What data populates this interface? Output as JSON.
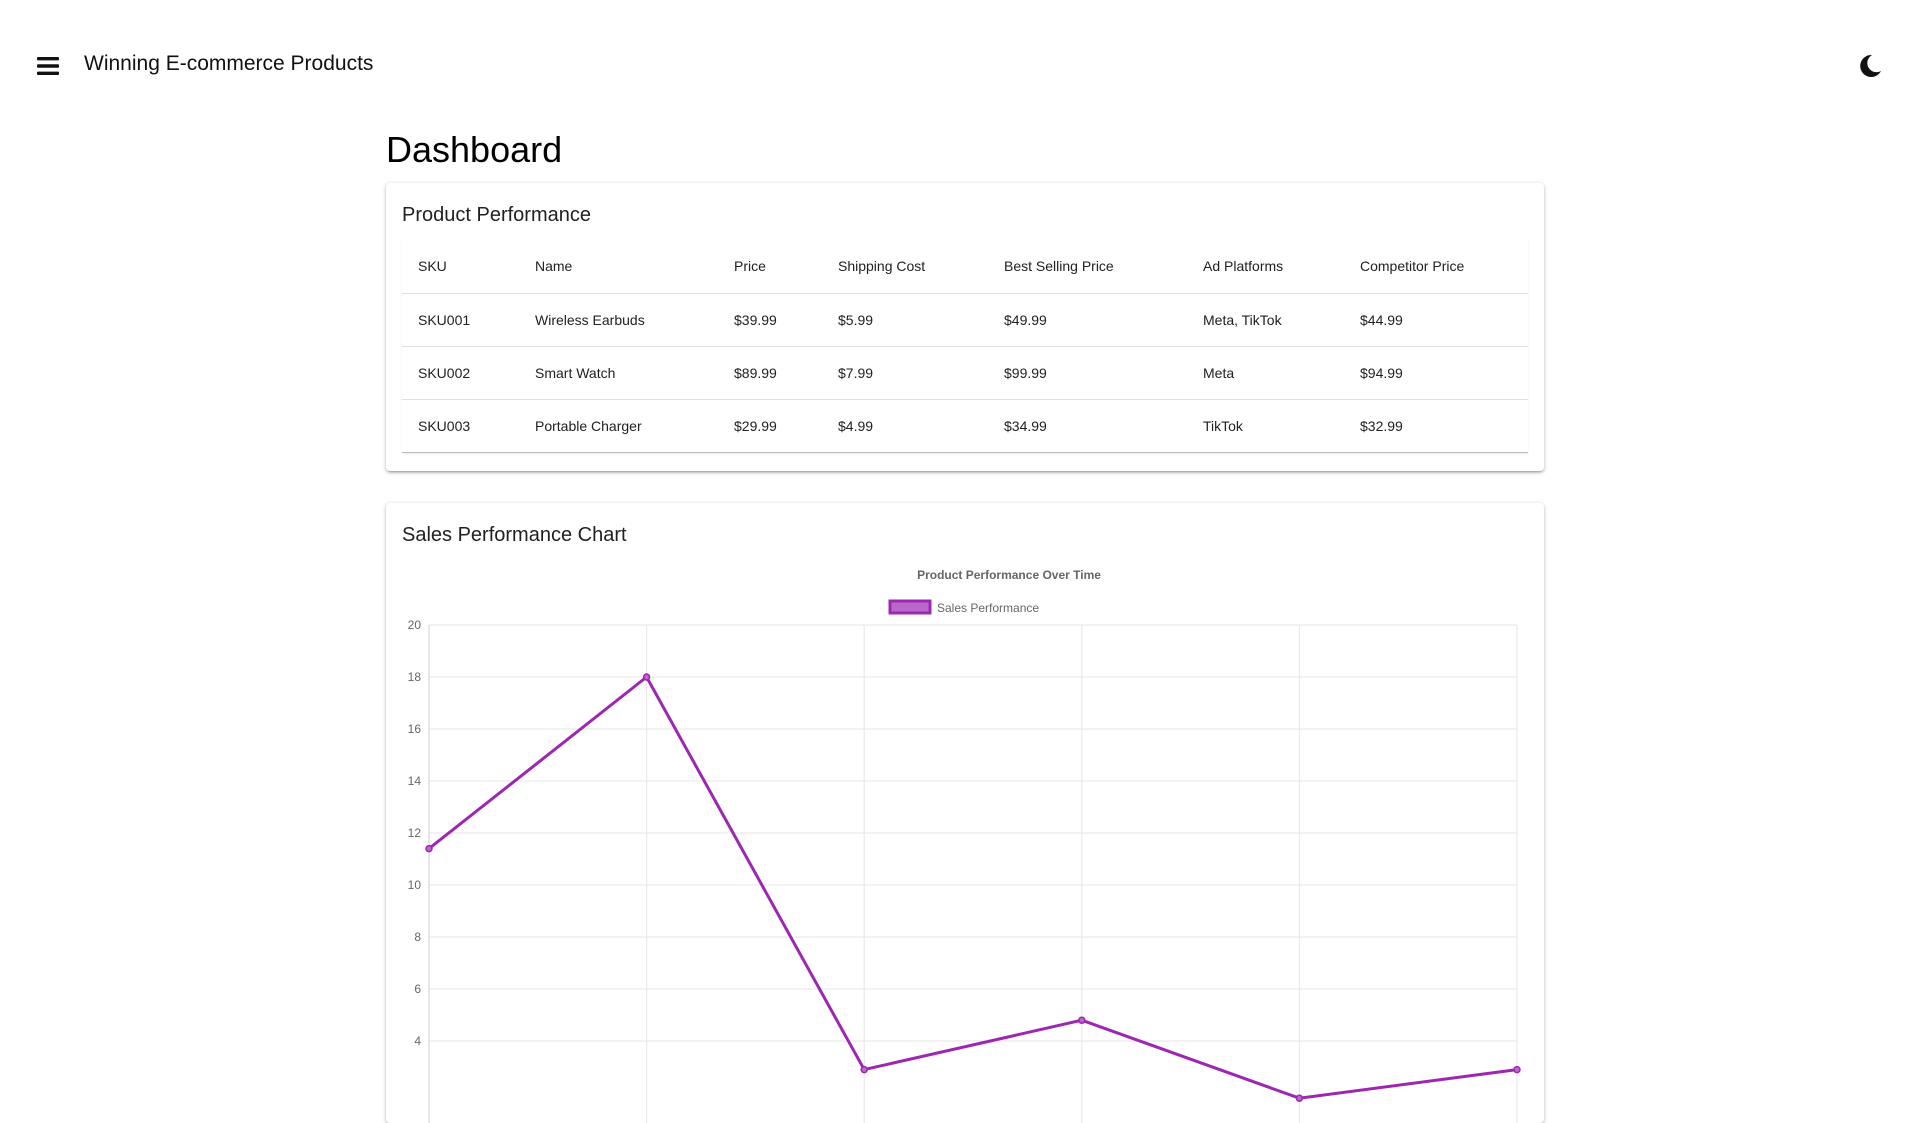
{
  "appbar": {
    "title": "Winning E-commerce Products",
    "menu_icon": "menu-icon",
    "theme_icon": "moon-icon"
  },
  "page": {
    "title": "Dashboard"
  },
  "performance_card": {
    "title": "Product Performance",
    "columns": [
      "SKU",
      "Name",
      "Price",
      "Shipping Cost",
      "Best Selling Price",
      "Ad Platforms",
      "Competitor Price"
    ],
    "rows": [
      [
        "SKU001",
        "Wireless Earbuds",
        "$39.99",
        "$5.99",
        "$49.99",
        "Meta, TikTok",
        "$44.99"
      ],
      [
        "SKU002",
        "Smart Watch",
        "$89.99",
        "$7.99",
        "$99.99",
        "Meta",
        "$94.99"
      ],
      [
        "SKU003",
        "Portable Charger",
        "$29.99",
        "$4.99",
        "$34.99",
        "TikTok",
        "$32.99"
      ]
    ]
  },
  "chart_card": {
    "title": "Sales Performance Chart"
  },
  "chart_data": {
    "type": "line",
    "title": "Product Performance Over Time",
    "series": [
      {
        "name": "Sales Performance",
        "values": [
          11.4,
          18.0,
          2.9,
          4.8,
          1.8,
          2.9
        ],
        "color": "#9c27b0",
        "fill": "#ba68c8"
      }
    ],
    "yticks": [
      4,
      6,
      8,
      10,
      12,
      14,
      16,
      18,
      20
    ],
    "ylim": [
      0,
      20
    ],
    "grid": true,
    "legend": "top"
  }
}
